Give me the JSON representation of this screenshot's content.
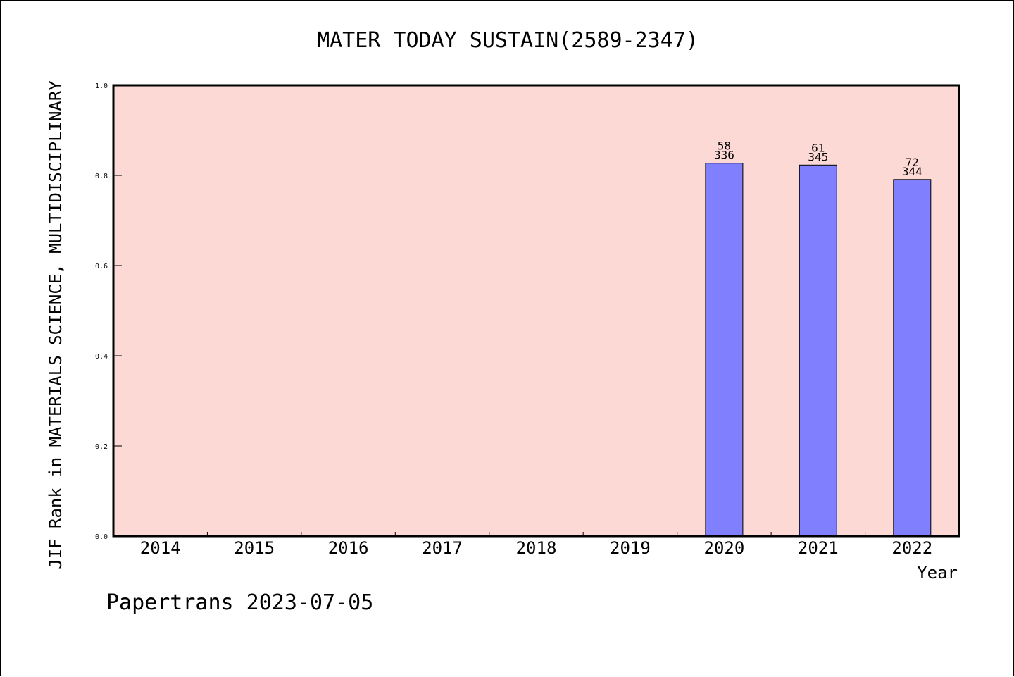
{
  "chart_data": {
    "type": "bar",
    "title": "MATER TODAY SUSTAIN(2589-2347)",
    "xlabel": "Year",
    "ylabel": "JIF Rank in MATERIALS SCIENCE, MULTIDISCIPLINARY",
    "categories": [
      "2014",
      "2015",
      "2016",
      "2017",
      "2018",
      "2019",
      "2020",
      "2021",
      "2022"
    ],
    "ylim": [
      0.0,
      1.0
    ],
    "yticks": [
      "0.0",
      "0.2",
      "0.4",
      "0.6",
      "0.8",
      "1.0"
    ],
    "series": [
      {
        "values": [
          null,
          null,
          null,
          null,
          null,
          null,
          0.827,
          0.823,
          0.791
        ],
        "rank": [
          null,
          null,
          null,
          null,
          null,
          null,
          "58",
          "61",
          "72"
        ],
        "total": [
          null,
          null,
          null,
          null,
          null,
          null,
          "336",
          "345",
          "344"
        ]
      }
    ],
    "grid": false,
    "colors": {
      "plot_background": "#fdd9d6",
      "bar_fill": "#8080ff",
      "bar_stroke": "#000000"
    }
  },
  "footer": {
    "text": "Papertrans 2023-07-05"
  }
}
